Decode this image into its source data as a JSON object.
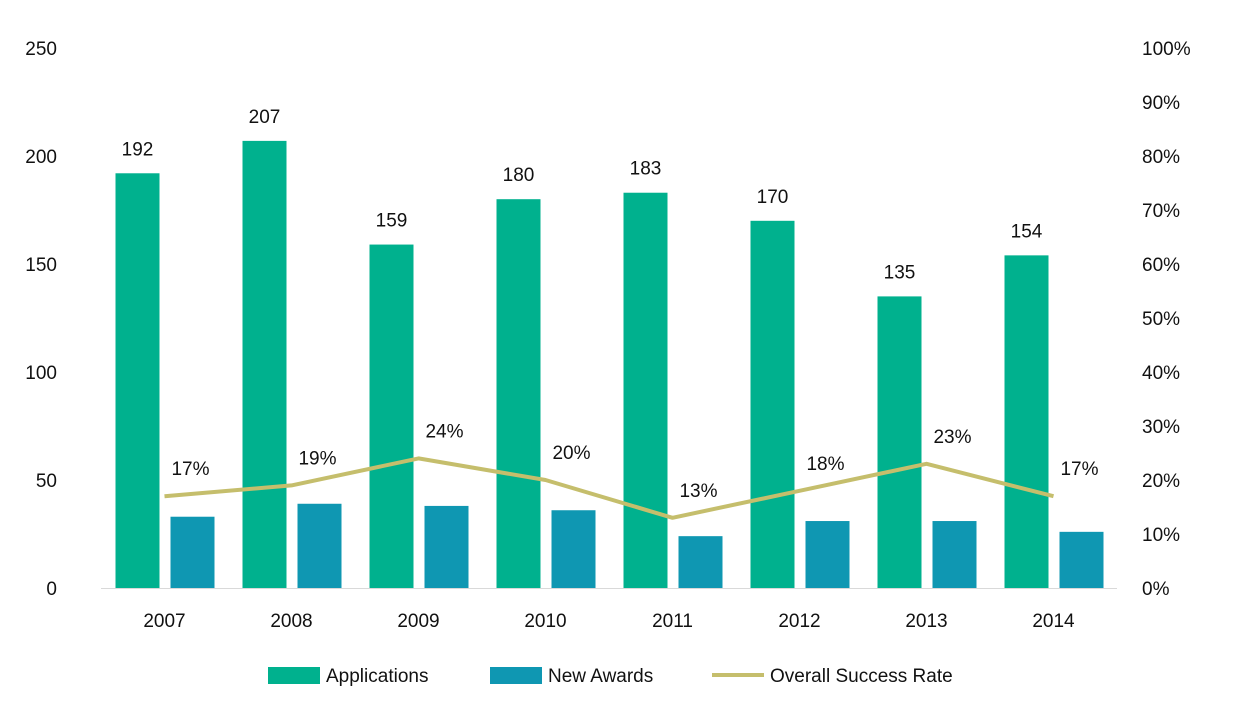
{
  "chart_data": {
    "type": "bar",
    "title": "",
    "xlabel": "",
    "ylabel": "",
    "categories": [
      "2007",
      "2008",
      "2009",
      "2010",
      "2011",
      "2012",
      "2013",
      "2014"
    ],
    "series": [
      {
        "name": "Applications",
        "kind": "bar",
        "axis": "left",
        "color": "#00B18E",
        "values": [
          192,
          207,
          159,
          180,
          183,
          170,
          135,
          154
        ],
        "labels": [
          "192",
          "207",
          "159",
          "180",
          "183",
          "170",
          "135",
          "154"
        ]
      },
      {
        "name": "New Awards",
        "kind": "bar",
        "axis": "left",
        "color": "#0F97B2",
        "values": [
          33,
          39,
          38,
          36,
          24,
          31,
          31,
          26
        ]
      },
      {
        "name": "Overall Success Rate",
        "kind": "line",
        "axis": "right",
        "color": "#C5BE6C",
        "values": [
          17,
          19,
          24,
          20,
          13,
          18,
          23,
          17
        ],
        "labels": [
          "17%",
          "19%",
          "24%",
          "20%",
          "13%",
          "18%",
          "23%",
          "17%"
        ]
      }
    ],
    "ylim": [
      0,
      250
    ],
    "y_ticks": [
      "0",
      "50",
      "100",
      "150",
      "200",
      "250"
    ],
    "y2lim": [
      0,
      100
    ],
    "y2_ticks": [
      "0%",
      "10%",
      "20%",
      "30%",
      "40%",
      "50%",
      "60%",
      "70%",
      "80%",
      "90%",
      "100%"
    ],
    "grid": false,
    "legend": "bottom-center"
  }
}
